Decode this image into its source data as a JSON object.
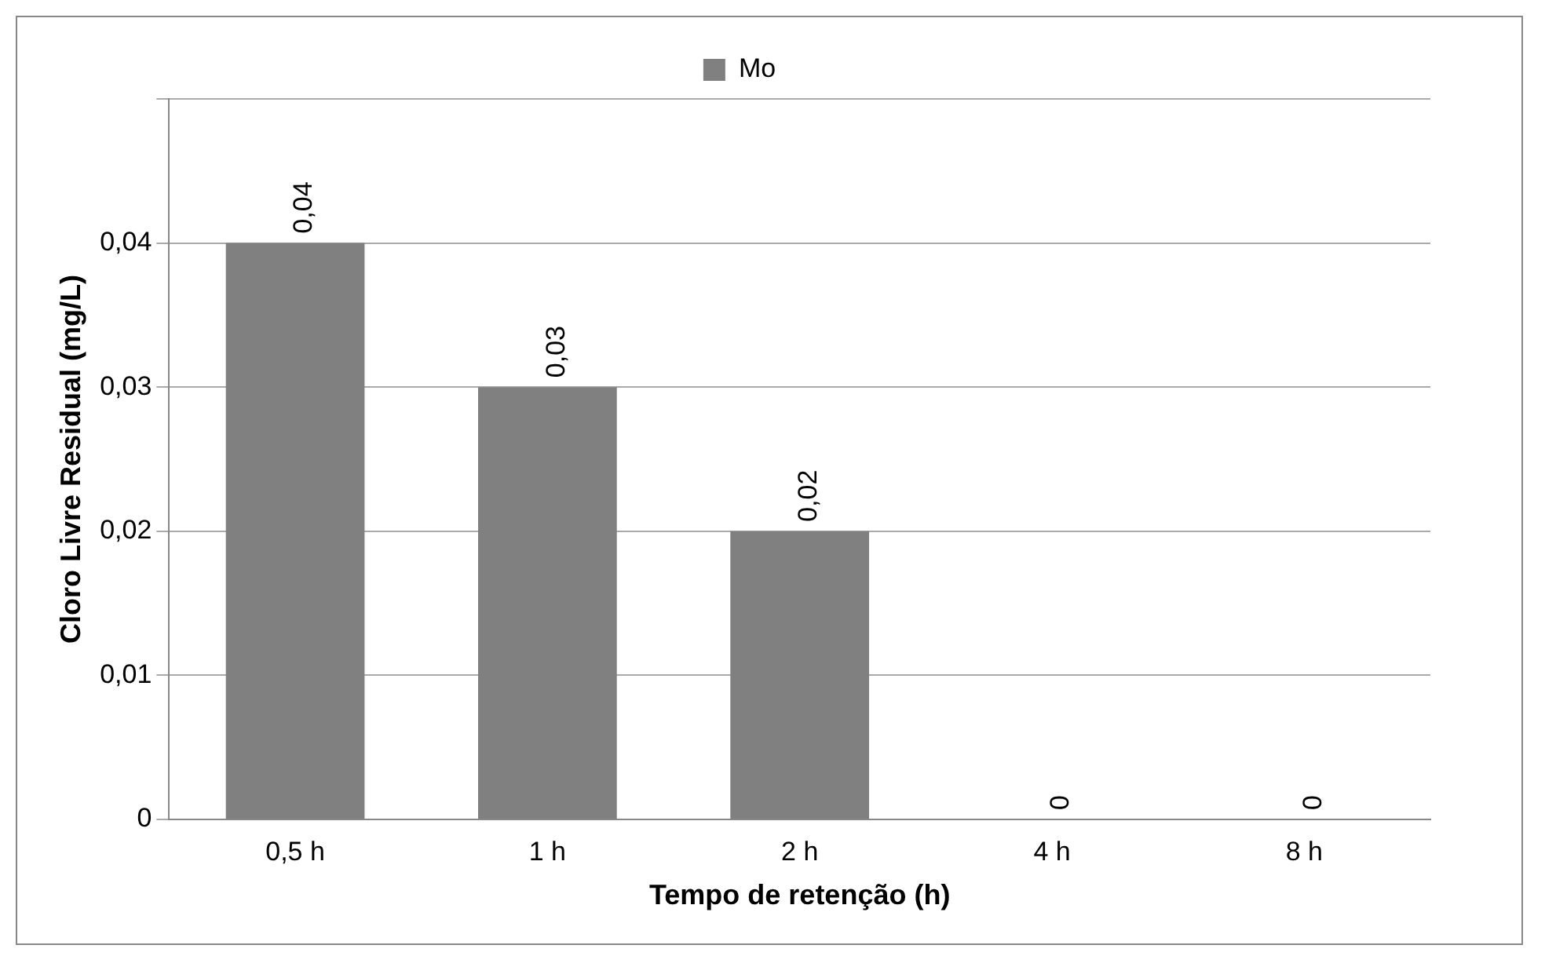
{
  "chart_data": {
    "type": "bar",
    "xlabel": "Tempo de retenção (h)",
    "ylabel": "Cloro Livre Residual (mg/L)",
    "categories": [
      "0,5 h",
      "1 h",
      "2 h",
      "4 h",
      "8 h"
    ],
    "series": [
      {
        "name": "Mo",
        "color": "#808080",
        "values": [
          0.04,
          0.03,
          0.02,
          0,
          0
        ],
        "value_labels": [
          "0,04",
          "0,03",
          "0,02",
          "0",
          "0"
        ]
      }
    ],
    "ylim": [
      0,
      0.05
    ],
    "yticks": [
      {
        "value": 0,
        "label": "0"
      },
      {
        "value": 0.01,
        "label": "0,01"
      },
      {
        "value": 0.02,
        "label": "0,02"
      },
      {
        "value": 0.03,
        "label": "0,03"
      },
      {
        "value": 0.04,
        "label": "0,04"
      },
      {
        "value": 0.05,
        "label": null
      }
    ],
    "grid": "y",
    "legend": "top"
  }
}
